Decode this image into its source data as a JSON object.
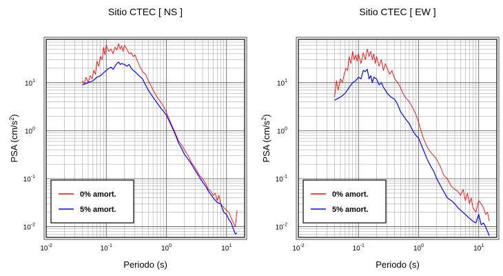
{
  "chart_data": [
    {
      "type": "line",
      "title": "Sitio CTEC [ NS ]",
      "xlabel": "Periodo (s)",
      "ylabel_main": "PSA (cm/s",
      "ylabel_sup": "2",
      "ylabel_close": ")",
      "x_scale": "log",
      "y_scale": "log",
      "xlim": [
        0.01,
        20
      ],
      "ylim": [
        0.006,
        80
      ],
      "grid": true,
      "legend_position": "bottom-left",
      "x_ticks": [
        {
          "value": 0.01,
          "base": "10",
          "exp": "-2"
        },
        {
          "value": 0.1,
          "base": "10",
          "exp": "-1"
        },
        {
          "value": 1,
          "base": "10",
          "exp": "0"
        },
        {
          "value": 10,
          "base": "10",
          "exp": "1"
        }
      ],
      "y_ticks": [
        {
          "value": 0.01,
          "base": "10",
          "exp": "-2"
        },
        {
          "value": 0.1,
          "base": "10",
          "exp": "-1"
        },
        {
          "value": 1,
          "base": "10",
          "exp": "0"
        },
        {
          "value": 10,
          "base": "10",
          "exp": "1"
        }
      ],
      "series": [
        {
          "name": "0% amort.",
          "color": "#ff0000",
          "x": [
            0.04,
            0.043,
            0.046,
            0.05,
            0.054,
            0.058,
            0.062,
            0.066,
            0.07,
            0.075,
            0.08,
            0.085,
            0.09,
            0.095,
            0.1,
            0.11,
            0.12,
            0.13,
            0.14,
            0.15,
            0.16,
            0.17,
            0.18,
            0.19,
            0.2,
            0.22,
            0.24,
            0.26,
            0.28,
            0.3,
            0.33,
            0.36,
            0.4,
            0.45,
            0.5,
            0.55,
            0.6,
            0.7,
            0.8,
            0.9,
            1.0,
            1.2,
            1.4,
            1.6,
            1.8,
            2.0,
            2.3,
            2.6,
            3.0,
            3.5,
            4.0,
            4.5,
            5.0,
            5.5,
            6.0,
            6.5,
            7.0,
            7.5,
            8.0,
            9.0,
            10.0,
            11.0,
            12.0,
            13.0,
            14.0,
            15.0
          ],
          "y": [
            11,
            9.5,
            13,
            10,
            14,
            12,
            18,
            15,
            28,
            22,
            35,
            30,
            55,
            38,
            60,
            45,
            50,
            40,
            55,
            48,
            65,
            50,
            58,
            45,
            60,
            50,
            40,
            42,
            35,
            38,
            28,
            22,
            17,
            15,
            11,
            9,
            7,
            5,
            4,
            3.2,
            2.4,
            1.4,
            0.9,
            0.6,
            0.5,
            0.4,
            0.3,
            0.22,
            0.17,
            0.12,
            0.1,
            0.08,
            0.06,
            0.055,
            0.045,
            0.05,
            0.035,
            0.045,
            0.03,
            0.025,
            0.022,
            0.02,
            0.015,
            0.012,
            0.01,
            0.022
          ]
        },
        {
          "name": "5% amort.",
          "color": "#0000ff",
          "x": [
            0.04,
            0.05,
            0.06,
            0.07,
            0.08,
            0.09,
            0.1,
            0.11,
            0.12,
            0.13,
            0.14,
            0.15,
            0.16,
            0.17,
            0.18,
            0.2,
            0.22,
            0.24,
            0.26,
            0.28,
            0.3,
            0.35,
            0.4,
            0.45,
            0.5,
            0.6,
            0.7,
            0.8,
            0.9,
            1.0,
            1.2,
            1.4,
            1.6,
            1.8,
            2.0,
            2.5,
            3.0,
            3.5,
            4.0,
            4.5,
            5.0,
            6.0,
            7.0,
            8.0,
            9.0,
            10.0,
            11.0,
            12.0,
            13.0,
            14.0,
            15.0
          ],
          "y": [
            9,
            10,
            11,
            13,
            14,
            16,
            18,
            20,
            21,
            19,
            22,
            25,
            27,
            24,
            25,
            24,
            22,
            24,
            20,
            18,
            17,
            14,
            12,
            9,
            7,
            5,
            3.8,
            3,
            2.5,
            2.1,
            1.3,
            0.85,
            0.55,
            0.42,
            0.32,
            0.22,
            0.15,
            0.11,
            0.085,
            0.07,
            0.055,
            0.04,
            0.032,
            0.03,
            0.02,
            0.018,
            0.014,
            0.012,
            0.009,
            0.007,
            0.0075
          ]
        }
      ]
    },
    {
      "type": "line",
      "title": "Sitio CTEC [ EW ]",
      "xlabel": "Periodo (s)",
      "ylabel_main": "PSA (cm/s",
      "ylabel_sup": "2",
      "ylabel_close": ")",
      "x_scale": "log",
      "y_scale": "log",
      "xlim": [
        0.01,
        20
      ],
      "ylim": [
        0.006,
        80
      ],
      "grid": true,
      "legend_position": "bottom-left",
      "x_ticks": [
        {
          "value": 0.01,
          "base": "10",
          "exp": "-2"
        },
        {
          "value": 0.1,
          "base": "10",
          "exp": "-1"
        },
        {
          "value": 1,
          "base": "10",
          "exp": "0"
        },
        {
          "value": 10,
          "base": "10",
          "exp": "1"
        }
      ],
      "y_ticks": [
        {
          "value": 0.01,
          "base": "10",
          "exp": "-2"
        },
        {
          "value": 0.1,
          "base": "10",
          "exp": "-1"
        },
        {
          "value": 1,
          "base": "10",
          "exp": "0"
        },
        {
          "value": 10,
          "base": "10",
          "exp": "1"
        }
      ],
      "series": [
        {
          "name": "0% amort.",
          "color": "#ff0000",
          "x": [
            0.04,
            0.043,
            0.046,
            0.05,
            0.054,
            0.058,
            0.062,
            0.066,
            0.07,
            0.075,
            0.08,
            0.085,
            0.09,
            0.095,
            0.1,
            0.11,
            0.12,
            0.13,
            0.14,
            0.15,
            0.16,
            0.17,
            0.18,
            0.19,
            0.2,
            0.22,
            0.24,
            0.26,
            0.28,
            0.3,
            0.33,
            0.36,
            0.4,
            0.45,
            0.5,
            0.55,
            0.6,
            0.7,
            0.8,
            0.9,
            1.0,
            1.2,
            1.4,
            1.6,
            1.8,
            2.0,
            2.3,
            2.6,
            3.0,
            3.5,
            4.0,
            4.5,
            5.0,
            5.5,
            6.0,
            6.5,
            7.0,
            7.5,
            8.0,
            9.0,
            10.0,
            11.0,
            12.0,
            13.0,
            14.0,
            15.0
          ],
          "y": [
            5,
            11,
            7,
            12,
            10,
            15,
            20,
            18,
            35,
            25,
            45,
            30,
            38,
            28,
            40,
            25,
            42,
            30,
            50,
            35,
            45,
            30,
            40,
            25,
            35,
            22,
            30,
            18,
            25,
            20,
            15,
            18,
            12,
            10,
            8,
            6,
            5,
            4,
            3,
            2.2,
            1.5,
            0.7,
            0.45,
            0.35,
            0.3,
            0.25,
            0.18,
            0.12,
            0.1,
            0.07,
            0.06,
            0.055,
            0.045,
            0.06,
            0.035,
            0.05,
            0.03,
            0.04,
            0.025,
            0.02,
            0.035,
            0.03,
            0.025,
            0.018,
            0.02,
            0.013
          ]
        },
        {
          "name": "5% amort.",
          "color": "#0000ff",
          "x": [
            0.04,
            0.05,
            0.06,
            0.07,
            0.08,
            0.09,
            0.1,
            0.11,
            0.12,
            0.13,
            0.14,
            0.15,
            0.16,
            0.17,
            0.18,
            0.2,
            0.22,
            0.24,
            0.26,
            0.28,
            0.3,
            0.35,
            0.4,
            0.45,
            0.5,
            0.6,
            0.7,
            0.8,
            0.9,
            1.0,
            1.2,
            1.4,
            1.6,
            1.8,
            2.0,
            2.5,
            3.0,
            3.5,
            4.0,
            4.5,
            5.0,
            6.0,
            7.0,
            8.0,
            9.0,
            10.0,
            11.0,
            12.0,
            13.0,
            14.0,
            15.0
          ],
          "y": [
            4.3,
            5,
            6,
            8,
            10,
            11,
            13,
            12,
            18,
            17,
            19,
            12,
            14,
            10,
            13,
            12,
            9,
            10,
            8,
            7,
            6,
            5,
            4.5,
            3.5,
            2.5,
            1.8,
            1.4,
            1,
            0.8,
            0.7,
            0.4,
            0.25,
            0.18,
            0.14,
            0.1,
            0.06,
            0.04,
            0.035,
            0.03,
            0.025,
            0.022,
            0.018,
            0.015,
            0.013,
            0.012,
            0.018,
            0.011,
            0.012,
            0.01,
            0.008,
            0.0065
          ]
        }
      ]
    }
  ]
}
